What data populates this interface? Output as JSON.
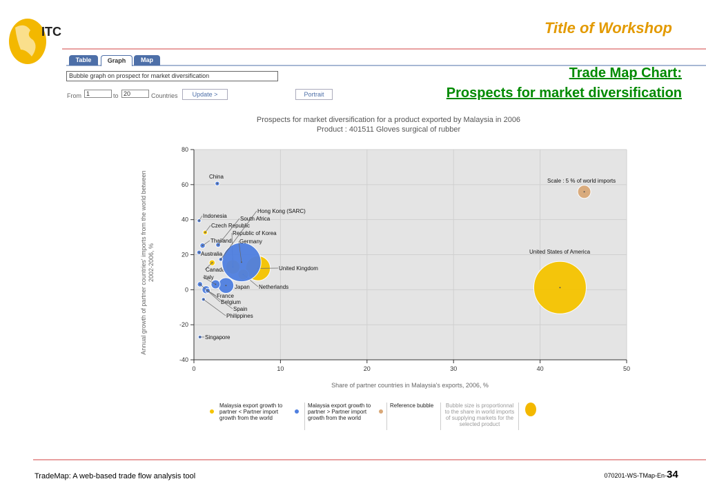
{
  "header": {
    "logo": "ITC",
    "title": "Title of Workshop"
  },
  "tabs": [
    "Table",
    "Graph",
    "Map"
  ],
  "controls": {
    "select": "Bubble graph on prospect for market diversification",
    "from_label": "From",
    "from_value": "1",
    "to_label": "to",
    "to_value": "20",
    "countries_label": "Countries",
    "update": "Update >",
    "portrait": "Portrait"
  },
  "slide_title": [
    "Trade Map Chart:",
    "Prospects for market diversification"
  ],
  "chart_data": {
    "type": "bubble",
    "title": "Prospects for market diversification for a product exported by Malaysia in 2006",
    "subtitle": "Product : 401511 Gloves surgical of rubber",
    "x_label": "Share of partner countries in Malaysia's exports, 2006, %",
    "y_label": "Annual growth of partner countries' imports from the world between 2002-2006, %",
    "xlim": [
      0,
      50
    ],
    "xticks": [
      0,
      10,
      20,
      30,
      40,
      50
    ],
    "ylim": [
      -40,
      80
    ],
    "yticks": [
      -40,
      -20,
      0,
      20,
      40,
      60,
      80
    ],
    "grid": true,
    "series": [
      {
        "name": "Malaysia export growth to partner < Partner import growth from the world",
        "color": "#f5c400",
        "labels": [
          "United States of America",
          "United Kingdom",
          "Republic of Korea",
          "Netherlands",
          "Canada",
          "Czech Republic"
        ],
        "x": [
          42.3,
          7.4,
          4.5,
          5.7,
          2.1,
          1.3
        ],
        "y": [
          1.2,
          12.2,
          13,
          8.7,
          15.4,
          32.7
        ],
        "sizes": [
          24,
          10.6,
          5.6,
          3.8,
          1.5,
          0.8
        ]
      },
      {
        "name": "Malaysia export growth to partner > Partner import growth from the world",
        "color": "#4f7fe0",
        "labels": [
          "Germany",
          "China",
          "Japan",
          "Italy",
          "France",
          "Belgium",
          "Spain",
          "Thailand",
          "Australia",
          "South Africa",
          "Hong Kong (SARC)",
          "Indonesia",
          "Philippines",
          "Singapore"
        ],
        "x": [
          5.5,
          2.7,
          3.7,
          2.5,
          1.4,
          0.7,
          1.6,
          1,
          0.6,
          2.8,
          3.1,
          0.6,
          1.1,
          0.7
        ],
        "y": [
          15.7,
          60.6,
          2.4,
          3.1,
          0,
          3.1,
          -0.5,
          25.2,
          21.3,
          25.6,
          17.3,
          39.4,
          -5.5,
          -27
        ],
        "sizes": [
          17.5,
          0.8,
          6.2,
          3,
          2.5,
          1.2,
          1,
          1.2,
          0.8,
          1,
          0.6,
          0.5,
          0.5,
          0.4
        ]
      },
      {
        "name": "Reference bubble",
        "color": "#d9a878",
        "labels": [
          "Scale : 5 % of world imports"
        ],
        "x": [
          45.1
        ],
        "y": [
          55.9
        ],
        "sizes": [
          5
        ]
      }
    ],
    "size_note": "Bubble size is proportionnal to the share in world imports of supplying markets for the selected product"
  },
  "footer": {
    "left": "TradeMap: A web-based trade flow analysis tool",
    "code": "070201-WS-TMap-En-",
    "page": "34"
  }
}
